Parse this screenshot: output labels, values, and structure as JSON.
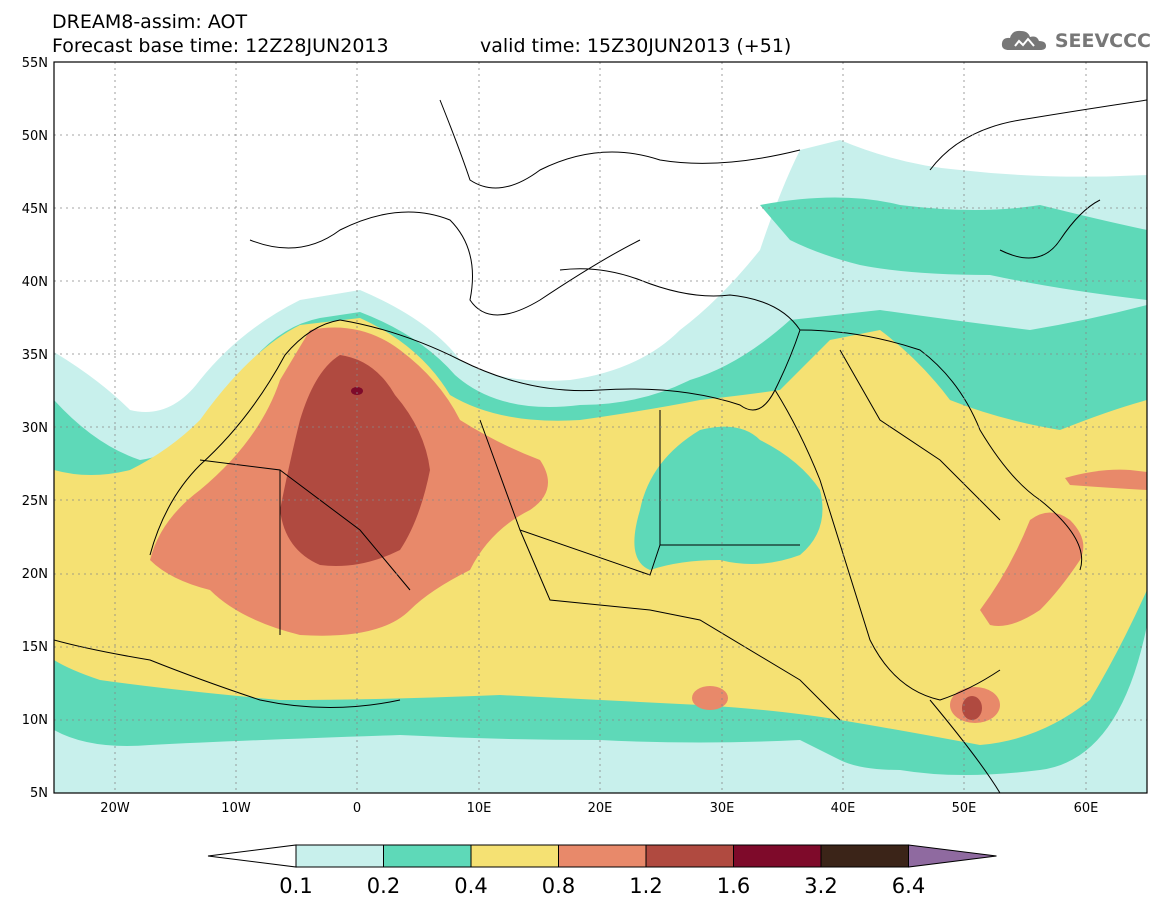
{
  "title": {
    "line1": "DREAM8-assim: AOT",
    "line2": "Forecast base time: 12Z28JUN2013",
    "line3": "valid time: 15Z30JUN2013 (+51)"
  },
  "logo": {
    "text": "SEEVCCC",
    "icon": "cloud-icon"
  },
  "map": {
    "lon_range": [
      -25,
      65
    ],
    "lat_range": [
      5,
      55
    ],
    "lat_ticks": [
      "5N",
      "10N",
      "15N",
      "20N",
      "25N",
      "30N",
      "35N",
      "40N",
      "45N",
      "50N",
      "55N"
    ],
    "lon_ticks": [
      "20W",
      "10W",
      "0",
      "10E",
      "20E",
      "30E",
      "40E",
      "50E",
      "60E"
    ]
  },
  "colorbar": {
    "labels": [
      "0.1",
      "0.2",
      "0.4",
      "0.8",
      "1.2",
      "1.6",
      "3.2",
      "6.4"
    ],
    "colors": [
      "#c8f0ec",
      "#5ed9b8",
      "#f5e173",
      "#e8896a",
      "#b04a40",
      "#7e0a2a",
      "#3b2418",
      "#8f6aa0"
    ],
    "under_color": "#ffffff"
  }
}
